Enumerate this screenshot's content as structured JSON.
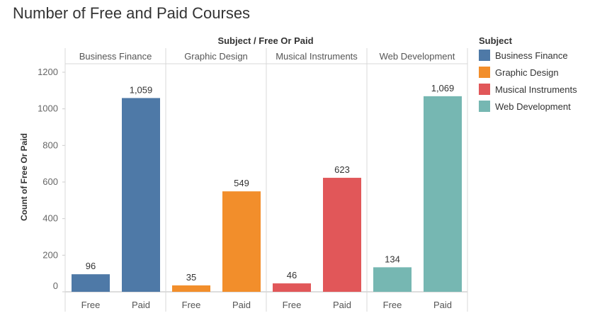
{
  "chart_data": {
    "type": "bar",
    "title": "Number of Free and Paid Courses",
    "column_header": "Subject  /  Free Or Paid",
    "ylabel": "Count of Free Or Paid",
    "ylim": [
      0,
      1200
    ],
    "yticks": [
      0,
      200,
      400,
      600,
      800,
      1000,
      1200
    ],
    "grid": false,
    "legend_position": "right",
    "legend_title": "Subject",
    "categories": [
      "Free",
      "Paid"
    ],
    "panels": [
      {
        "name": "Business Finance",
        "color": "#4e79a7",
        "values": [
          96,
          1059
        ],
        "labels": [
          "96",
          "1,059"
        ]
      },
      {
        "name": "Graphic Design",
        "color": "#f28e2b",
        "values": [
          35,
          549
        ],
        "labels": [
          "35",
          "549"
        ]
      },
      {
        "name": "Musical Instruments",
        "color": "#e15759",
        "values": [
          46,
          623
        ],
        "labels": [
          "46",
          "623"
        ]
      },
      {
        "name": "Web Development",
        "color": "#76b7b2",
        "values": [
          134,
          1069
        ],
        "labels": [
          "134",
          "1,069"
        ]
      }
    ]
  }
}
